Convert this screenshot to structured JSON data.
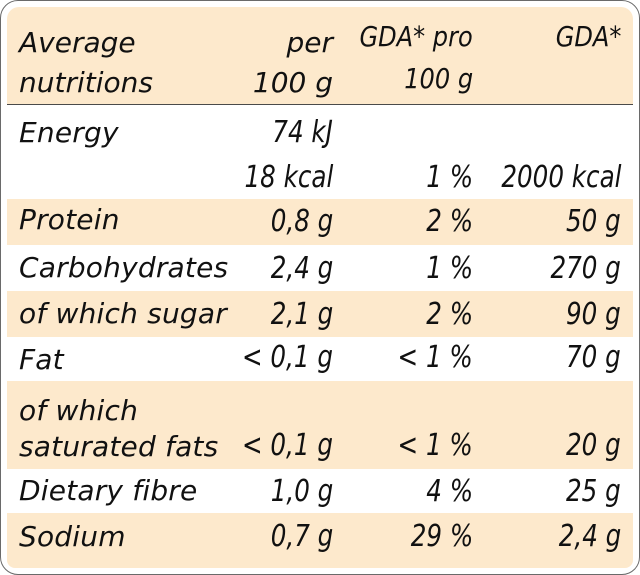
{
  "header": {
    "label_line1": "Average",
    "label_line2": "nutritions",
    "col1_line1": "per",
    "col1_line2": "100 g",
    "col2_line1": "GDA* pro",
    "col2_line2": "100 g",
    "col3_line1": "GDA*"
  },
  "rows": [
    {
      "label": "Energy",
      "per100": "74 kJ",
      "gda_pct": "",
      "gda": ""
    },
    {
      "label": "",
      "per100": "18 kcal",
      "gda_pct": "1 %",
      "gda": "2000 kcal"
    },
    {
      "label": "Protein",
      "per100": "0,8 g",
      "gda_pct": "2 %",
      "gda": "50 g"
    },
    {
      "label": "Carbohydrates",
      "per100": "2,4 g",
      "gda_pct": "1 %",
      "gda": "270 g"
    },
    {
      "label": "of which sugar",
      "per100": "2,1 g",
      "gda_pct": "2 %",
      "gda": "90 g"
    },
    {
      "label": "Fat",
      "per100": "< 0,1 g",
      "gda_pct": "< 1 %",
      "gda": "70 g"
    },
    {
      "label": "of which",
      "per100": "",
      "gda_pct": "",
      "gda": ""
    },
    {
      "label": "saturated fats",
      "per100": "< 0,1 g",
      "gda_pct": "< 1 %",
      "gda": "20 g"
    },
    {
      "label": "Dietary fibre",
      "per100": "1,0 g",
      "gda_pct": "4 %",
      "gda": "25 g"
    },
    {
      "label": "Sodium",
      "per100": "0,7 g",
      "gda_pct": "29 %",
      "gda": "2,4 g"
    }
  ]
}
